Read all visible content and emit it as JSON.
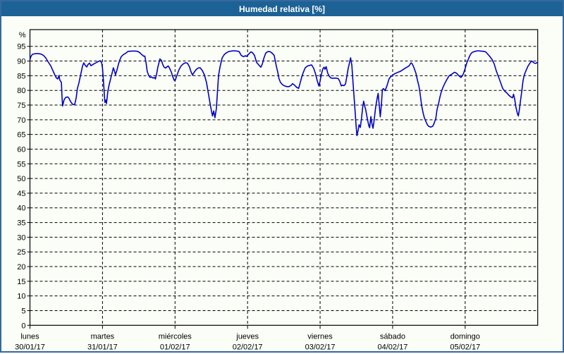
{
  "window": {
    "title": "Humedad relativa [%]"
  },
  "colors": {
    "titlebar_bg": "#1D6296",
    "titlebar_text": "#FFFFFF",
    "frame_border": "#35699E",
    "window_bg": "#FBFEF7",
    "plot_border": "#000000",
    "grid": "#000000",
    "line": "#0000C4"
  },
  "chart_data": {
    "type": "line",
    "title": "Humedad relativa [%]",
    "ylabel": "%",
    "ylim": [
      0,
      100.7
    ],
    "yticks": [
      0,
      5,
      10,
      15,
      20,
      25,
      30,
      35,
      40,
      45,
      50,
      55,
      60,
      65,
      70,
      75,
      80,
      85,
      90,
      95
    ],
    "grid": true,
    "legend": false,
    "x_unit": "hours",
    "x_range_hours": [
      0,
      168
    ],
    "x_day_ticks": [
      {
        "hour": 0,
        "name": "lunes",
        "date": "30/01/17"
      },
      {
        "hour": 24,
        "name": "martes",
        "date": "31/01/17"
      },
      {
        "hour": 48,
        "name": "miércoles",
        "date": "01/02/17"
      },
      {
        "hour": 72,
        "name": "jueves",
        "date": "02/02/17"
      },
      {
        "hour": 96,
        "name": "viernes",
        "date": "03/02/17"
      },
      {
        "hour": 120,
        "name": "sábado",
        "date": "04/02/17"
      },
      {
        "hour": 144,
        "name": "domingo",
        "date": "05/02/17"
      }
    ],
    "series": [
      {
        "name": "Humedad relativa [%]",
        "color": "#0000C4",
        "points": [
          [
            0,
            90.5
          ],
          [
            0.3,
            91.5
          ],
          [
            0.8,
            92.3
          ],
          [
            1.7,
            92.5
          ],
          [
            2.7,
            92.5
          ],
          [
            3.6,
            92.4
          ],
          [
            4.5,
            91.9
          ],
          [
            5.2,
            91.1
          ],
          [
            5.9,
            89.9
          ],
          [
            6.9,
            88.3
          ],
          [
            7.6,
            86.7
          ],
          [
            8.3,
            85.1
          ],
          [
            8.7,
            84.3
          ],
          [
            9.2,
            83.9
          ],
          [
            9.6,
            85.1
          ],
          [
            9.9,
            83.5
          ],
          [
            10.4,
            82.7
          ],
          [
            10.6,
            78
          ],
          [
            10.8,
            74.7
          ],
          [
            11.3,
            76.8
          ],
          [
            11.8,
            77.6
          ],
          [
            12.5,
            77.8
          ],
          [
            12.9,
            77.3
          ],
          [
            13.4,
            76.3
          ],
          [
            13.9,
            75.5
          ],
          [
            14.3,
            75.2
          ],
          [
            14.8,
            75.1
          ],
          [
            15.3,
            77.5
          ],
          [
            15.7,
            80.7
          ],
          [
            16.2,
            82.5
          ],
          [
            16.7,
            85
          ],
          [
            17.4,
            88.3
          ],
          [
            17.8,
            89.4
          ],
          [
            18.3,
            88.5
          ],
          [
            18.8,
            88
          ],
          [
            19.2,
            88.8
          ],
          [
            19.7,
            89.3
          ],
          [
            20.2,
            88.4
          ],
          [
            20.6,
            88.7
          ],
          [
            21.1,
            89
          ],
          [
            21.8,
            89.4
          ],
          [
            22.5,
            89.8
          ],
          [
            23.2,
            90.1
          ],
          [
            23.7,
            89.5
          ],
          [
            24,
            87.6
          ],
          [
            24.4,
            82
          ],
          [
            24.6,
            78.5
          ],
          [
            24.8,
            75.9
          ],
          [
            25.1,
            76.7
          ],
          [
            25.3,
            75.5
          ],
          [
            25.8,
            79.9
          ],
          [
            26.2,
            81.9
          ],
          [
            26.7,
            84
          ],
          [
            27.2,
            86
          ],
          [
            27.6,
            87.7
          ],
          [
            28,
            86.5
          ],
          [
            28.3,
            85.3
          ],
          [
            28.8,
            87
          ],
          [
            29.3,
            89
          ],
          [
            29.7,
            90.3
          ],
          [
            30.2,
            91.5
          ],
          [
            30.9,
            92.2
          ],
          [
            31.6,
            92.6
          ],
          [
            32.5,
            93.3
          ],
          [
            33.7,
            93.4
          ],
          [
            34.9,
            93.4
          ],
          [
            35.6,
            93.3
          ],
          [
            36.3,
            92.9
          ],
          [
            37,
            92.2
          ],
          [
            37.7,
            91.6
          ],
          [
            38,
            91.7
          ],
          [
            38.4,
            89.5
          ],
          [
            38.8,
            86.5
          ],
          [
            39.3,
            85
          ],
          [
            39.8,
            84.4
          ],
          [
            40.2,
            84.6
          ],
          [
            40.7,
            84.2
          ],
          [
            41.2,
            84.4
          ],
          [
            41.5,
            83.9
          ],
          [
            41.9,
            85.5
          ],
          [
            42.3,
            87.8
          ],
          [
            43,
            90.7
          ],
          [
            43.5,
            90.2
          ],
          [
            44,
            88.7
          ],
          [
            44.4,
            87.9
          ],
          [
            44.9,
            87.6
          ],
          [
            45.4,
            88.1
          ],
          [
            45.8,
            88.3
          ],
          [
            46.3,
            87.3
          ],
          [
            46.8,
            86.2
          ],
          [
            47.2,
            84.8
          ],
          [
            47.7,
            83.5
          ],
          [
            48,
            83.3
          ],
          [
            48.6,
            85
          ],
          [
            49.3,
            87
          ],
          [
            50,
            88.3
          ],
          [
            50.7,
            89
          ],
          [
            51.4,
            89.4
          ],
          [
            52.1,
            89.3
          ],
          [
            52.8,
            88
          ],
          [
            53.3,
            86.3
          ],
          [
            53.8,
            85.2
          ],
          [
            54.2,
            86
          ],
          [
            54.9,
            87
          ],
          [
            55.6,
            87.6
          ],
          [
            56.3,
            87.7
          ],
          [
            57,
            86.8
          ],
          [
            57.7,
            85.3
          ],
          [
            58.4,
            82.7
          ],
          [
            59.1,
            78.5
          ],
          [
            59.6,
            75.5
          ],
          [
            60.1,
            72.8
          ],
          [
            60.4,
            71.3
          ],
          [
            60.8,
            73
          ],
          [
            61.2,
            70.7
          ],
          [
            61.7,
            74
          ],
          [
            62,
            79
          ],
          [
            62.4,
            85.1
          ],
          [
            62.9,
            88
          ],
          [
            63.6,
            91.1
          ],
          [
            64.3,
            92.2
          ],
          [
            65,
            92.8
          ],
          [
            65.7,
            93.2
          ],
          [
            66.6,
            93.4
          ],
          [
            67.5,
            93.5
          ],
          [
            68.5,
            93.4
          ],
          [
            69.2,
            93.2
          ],
          [
            69.9,
            91.9
          ],
          [
            70.6,
            91.5
          ],
          [
            71.3,
            91.8
          ],
          [
            71.7,
            91.6
          ],
          [
            72.4,
            92.4
          ],
          [
            73.1,
            93.1
          ],
          [
            73.6,
            92.9
          ],
          [
            74.3,
            91.9
          ],
          [
            75,
            89.5
          ],
          [
            75.7,
            88.7
          ],
          [
            76.4,
            87.9
          ],
          [
            76.9,
            89
          ],
          [
            77.3,
            90.7
          ],
          [
            78,
            92.7
          ],
          [
            78.7,
            93.2
          ],
          [
            79.4,
            93.2
          ],
          [
            80.1,
            92.7
          ],
          [
            80.8,
            91.9
          ],
          [
            81.5,
            88.3
          ],
          [
            82,
            86.2
          ],
          [
            82.4,
            84
          ],
          [
            82.9,
            82.7
          ],
          [
            83.6,
            81.9
          ],
          [
            84.3,
            81.5
          ],
          [
            85,
            81.3
          ],
          [
            85.7,
            81.3
          ],
          [
            86.4,
            81.7
          ],
          [
            86.9,
            82.3
          ],
          [
            87.4,
            81.9
          ],
          [
            87.8,
            81.5
          ],
          [
            88.3,
            81
          ],
          [
            88.9,
            80.7
          ],
          [
            89.4,
            82.5
          ],
          [
            89.9,
            84.5
          ],
          [
            90.4,
            86
          ],
          [
            91.1,
            87.7
          ],
          [
            91.8,
            88.3
          ],
          [
            92.5,
            88.5
          ],
          [
            93.2,
            88.7
          ],
          [
            93.9,
            87.5
          ],
          [
            94.4,
            85.9
          ],
          [
            95.1,
            83.1
          ],
          [
            95.6,
            81.5
          ],
          [
            96,
            83.1
          ],
          [
            96.4,
            85.5
          ],
          [
            96.9,
            87.3
          ],
          [
            97.3,
            87.9
          ],
          [
            97.6,
            87.2
          ],
          [
            98,
            88.1
          ],
          [
            98.5,
            85.9
          ],
          [
            99,
            84.9
          ],
          [
            99.5,
            84.3
          ],
          [
            100.2,
            84.1
          ],
          [
            101.1,
            84.2
          ],
          [
            102,
            84
          ],
          [
            102.5,
            83.1
          ],
          [
            103,
            81.5
          ],
          [
            103.4,
            81.8
          ],
          [
            103.9,
            81.6
          ],
          [
            104.4,
            82.2
          ],
          [
            104.8,
            84.5
          ],
          [
            105.3,
            87.5
          ],
          [
            105.8,
            89.8
          ],
          [
            106.1,
            91.1
          ],
          [
            106.5,
            88.5
          ],
          [
            106.9,
            82.5
          ],
          [
            107.4,
            75.5
          ],
          [
            107.9,
            68
          ],
          [
            108.2,
            64.6
          ],
          [
            108.6,
            66.5
          ],
          [
            108.9,
            68.3
          ],
          [
            109.3,
            67.4
          ],
          [
            109.7,
            70.5
          ],
          [
            110.1,
            74.3
          ],
          [
            110.4,
            76.3
          ],
          [
            110.8,
            74.5
          ],
          [
            111.1,
            73.4
          ],
          [
            111.6,
            70.5
          ],
          [
            112.1,
            68
          ],
          [
            112.4,
            67.3
          ],
          [
            112.8,
            71.1
          ],
          [
            113.1,
            69
          ],
          [
            113.5,
            67.1
          ],
          [
            113.9,
            70
          ],
          [
            114.4,
            74.4
          ],
          [
            114.9,
            77.5
          ],
          [
            115.2,
            79
          ],
          [
            115.6,
            74.5
          ],
          [
            115.9,
            71
          ],
          [
            116.3,
            75.5
          ],
          [
            116.6,
            80.3
          ],
          [
            117,
            80.6
          ],
          [
            117.5,
            79.9
          ],
          [
            118.1,
            81.5
          ],
          [
            118.8,
            83.9
          ],
          [
            119.3,
            84.6
          ],
          [
            119.9,
            85.1
          ],
          [
            120.7,
            85.7
          ],
          [
            121.6,
            86.1
          ],
          [
            122.6,
            86.5
          ],
          [
            123.5,
            87.1
          ],
          [
            124.4,
            87.7
          ],
          [
            125.4,
            88.3
          ],
          [
            126.1,
            89.4
          ],
          [
            126.5,
            89
          ],
          [
            127,
            87.9
          ],
          [
            127.7,
            85.9
          ],
          [
            128.2,
            83.5
          ],
          [
            128.7,
            81.5
          ],
          [
            129.1,
            78.9
          ],
          [
            129.6,
            74.8
          ],
          [
            130.1,
            72.3
          ],
          [
            130.5,
            70.7
          ],
          [
            131,
            69.4
          ],
          [
            131.5,
            68.3
          ],
          [
            131.9,
            67.8
          ],
          [
            132.6,
            67.5
          ],
          [
            133.3,
            67.8
          ],
          [
            133.8,
            69
          ],
          [
            134.3,
            70.5
          ],
          [
            134.7,
            73.5
          ],
          [
            135.2,
            75.5
          ],
          [
            135.6,
            77.5
          ],
          [
            136,
            79.1
          ],
          [
            136.6,
            80.9
          ],
          [
            137.3,
            82.5
          ],
          [
            138,
            83.8
          ],
          [
            138.7,
            85
          ],
          [
            139.4,
            85.4
          ],
          [
            140.5,
            86.2
          ],
          [
            141.2,
            85.8
          ],
          [
            141.9,
            85
          ],
          [
            142.6,
            84.4
          ],
          [
            143.1,
            85
          ],
          [
            143.6,
            86.2
          ],
          [
            144,
            87.5
          ],
          [
            144.5,
            89.3
          ],
          [
            145,
            90.5
          ],
          [
            145.4,
            91.5
          ],
          [
            145.9,
            92.5
          ],
          [
            146.4,
            93
          ],
          [
            147.3,
            93.3
          ],
          [
            148.2,
            93.5
          ],
          [
            149.2,
            93.4
          ],
          [
            150.1,
            93.3
          ],
          [
            150.8,
            93.1
          ],
          [
            151.5,
            92.3
          ],
          [
            152.2,
            91.5
          ],
          [
            152.9,
            90.5
          ],
          [
            153.6,
            89
          ],
          [
            154.3,
            86.6
          ],
          [
            155,
            84.7
          ],
          [
            155.7,
            82.7
          ],
          [
            156.4,
            80.7
          ],
          [
            157.1,
            79.7
          ],
          [
            157.8,
            79.1
          ],
          [
            158.5,
            78.3
          ],
          [
            159.2,
            77.7
          ],
          [
            159.7,
            77.5
          ],
          [
            160,
            78.7
          ],
          [
            160.4,
            77
          ],
          [
            160.8,
            74.3
          ],
          [
            161.3,
            72
          ],
          [
            161.6,
            71.3
          ],
          [
            162,
            74
          ],
          [
            162.3,
            76.5
          ],
          [
            162.7,
            79.5
          ],
          [
            163.1,
            83
          ],
          [
            163.5,
            85.1
          ],
          [
            164.1,
            86.7
          ],
          [
            164.8,
            88.3
          ],
          [
            165.5,
            89.4
          ],
          [
            166,
            90
          ],
          [
            166.4,
            89.7
          ],
          [
            166.9,
            89.3
          ],
          [
            167.4,
            89.2
          ],
          [
            167.8,
            89.5
          ]
        ]
      }
    ]
  }
}
